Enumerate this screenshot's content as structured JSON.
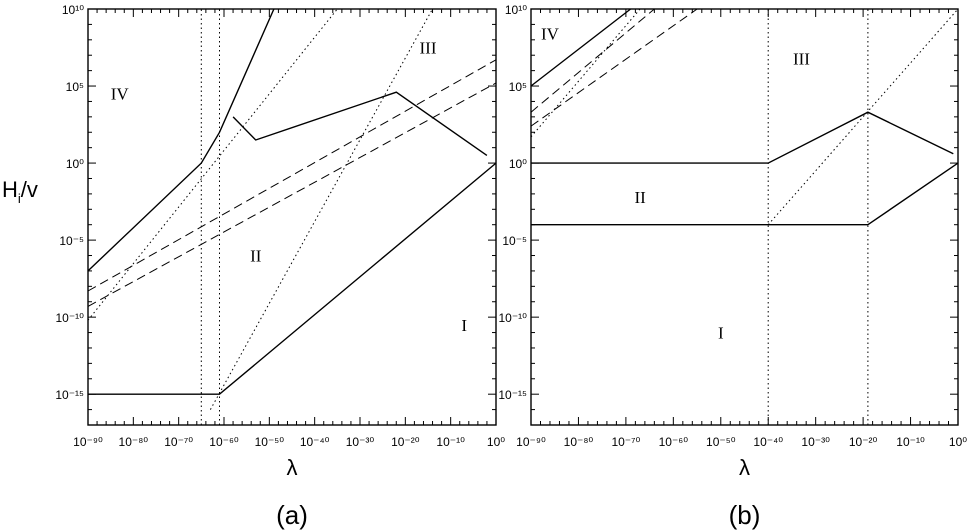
{
  "chart_data": [
    {
      "type": "line",
      "panel_label": "(a)",
      "xlabel": "λ",
      "ylabel": "H_i/v",
      "x_scale": "log",
      "y_scale": "log",
      "xlim_exp": [
        -90,
        0
      ],
      "ylim_exp": [
        -17,
        10
      ],
      "x_ticks": [
        -90,
        -80,
        -70,
        -60,
        -50,
        -40,
        -30,
        -20,
        -10,
        0
      ],
      "y_ticks": [
        -15,
        -10,
        -5,
        0,
        5,
        10
      ],
      "regions": [
        {
          "label": "I",
          "x": -7,
          "y": -10.5
        },
        {
          "label": "II",
          "x": -53,
          "y": -6
        },
        {
          "label": "III",
          "x": -15,
          "y": 7.5
        },
        {
          "label": "IV",
          "x": -83,
          "y": 4.5
        }
      ],
      "series": [
        {
          "style": "solid",
          "points": [
            [
              -90,
              -7
            ],
            [
              -65,
              0
            ],
            [
              -61,
              2
            ],
            [
              -49,
              10
            ]
          ]
        },
        {
          "style": "solid",
          "points": [
            [
              -58,
              3
            ],
            [
              -53,
              1.5
            ],
            [
              -22,
              4.6
            ],
            [
              -2,
              0.5
            ]
          ]
        },
        {
          "style": "solid",
          "points": [
            [
              -90,
              -15
            ],
            [
              -61,
              -15
            ],
            [
              0,
              0
            ]
          ]
        },
        {
          "style": "dashed",
          "points": [
            [
              -90,
              -8.3
            ],
            [
              0,
              6.7
            ]
          ]
        },
        {
          "style": "dashed",
          "points": [
            [
              -90,
              -9.3
            ],
            [
              0,
              5.2
            ]
          ]
        },
        {
          "style": "dotted",
          "points": [
            [
              -90,
              -10.2
            ],
            [
              -35,
              10
            ]
          ]
        },
        {
          "style": "dotted",
          "points": [
            [
              -63,
              -16
            ],
            [
              -14,
              10
            ]
          ]
        },
        {
          "style": "dotted",
          "points": [
            [
              -65,
              -17
            ],
            [
              -65,
              10
            ]
          ]
        },
        {
          "style": "dotted",
          "points": [
            [
              -61,
              -17
            ],
            [
              -61,
              10
            ]
          ]
        }
      ]
    },
    {
      "type": "line",
      "panel_label": "(b)",
      "xlabel": "λ",
      "ylabel": "",
      "x_scale": "log",
      "y_scale": "log",
      "xlim_exp": [
        -90,
        0
      ],
      "ylim_exp": [
        -17,
        10
      ],
      "x_ticks": [
        -90,
        -80,
        -70,
        -60,
        -50,
        -40,
        -30,
        -20,
        -10,
        0
      ],
      "y_ticks": [
        -15,
        -10,
        -5,
        0,
        5,
        10
      ],
      "regions": [
        {
          "label": "I",
          "x": -50,
          "y": -11
        },
        {
          "label": "II",
          "x": -67,
          "y": -2.2
        },
        {
          "label": "III",
          "x": -33,
          "y": 6.8
        },
        {
          "label": "IV",
          "x": -86,
          "y": 8.4
        }
      ],
      "series": [
        {
          "style": "solid",
          "points": [
            [
              -90,
              5
            ],
            [
              -69,
              10
            ]
          ]
        },
        {
          "style": "solid",
          "points": [
            [
              -90,
              0
            ],
            [
              -40,
              0
            ],
            [
              -19,
              3.3
            ],
            [
              -1,
              0.6
            ]
          ]
        },
        {
          "style": "solid",
          "points": [
            [
              -90,
              -4
            ],
            [
              -19,
              -4
            ],
            [
              0,
              0
            ]
          ]
        },
        {
          "style": "dashed",
          "points": [
            [
              -90,
              3.3
            ],
            [
              -64,
              10
            ]
          ]
        },
        {
          "style": "dashed",
          "points": [
            [
              -90,
              2.4
            ],
            [
              -55,
              10
            ]
          ]
        },
        {
          "style": "dotted",
          "points": [
            [
              -90,
              1.7
            ],
            [
              -67,
              10
            ]
          ]
        },
        {
          "style": "dotted",
          "points": [
            [
              -40,
              -4
            ],
            [
              0,
              10
            ]
          ]
        },
        {
          "style": "dotted",
          "points": [
            [
              -40,
              -17
            ],
            [
              -40,
              10
            ]
          ]
        },
        {
          "style": "dotted",
          "points": [
            [
              -19,
              -17
            ],
            [
              -19,
              10
            ]
          ]
        }
      ]
    }
  ]
}
